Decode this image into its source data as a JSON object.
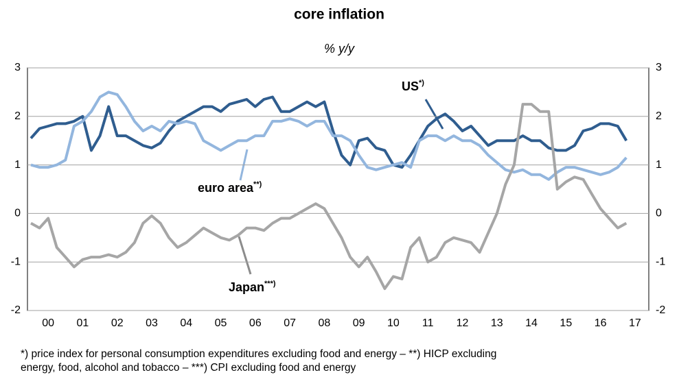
{
  "chart_data": {
    "type": "line",
    "title": "core inflation",
    "subtitle": "% y/y",
    "x": [
      0,
      0.25,
      0.5,
      0.75,
      1,
      1.25,
      1.5,
      1.75,
      2,
      2.25,
      2.5,
      2.75,
      3,
      3.25,
      3.5,
      3.75,
      4,
      4.25,
      4.5,
      4.75,
      5,
      5.25,
      5.5,
      5.75,
      6,
      6.25,
      6.5,
      6.75,
      7,
      7.25,
      7.5,
      7.75,
      8,
      8.25,
      8.5,
      8.75,
      9,
      9.25,
      9.5,
      9.75,
      10,
      10.25,
      10.5,
      10.75,
      11,
      11.25,
      11.5,
      11.75,
      12,
      12.25,
      12.5,
      12.75,
      13,
      13.25,
      13.5,
      13.75,
      14,
      14.25,
      14.5,
      14.75,
      15,
      15.25,
      15.5,
      15.75,
      16,
      16.25,
      16.5,
      16.75,
      17,
      17.25
    ],
    "series": [
      {
        "name": "US",
        "color": "#2f5d8f",
        "values": [
          1.55,
          1.75,
          1.8,
          1.85,
          1.85,
          1.9,
          2.0,
          1.3,
          1.6,
          2.2,
          1.6,
          1.6,
          1.5,
          1.4,
          1.35,
          1.45,
          1.7,
          1.9,
          2.0,
          2.1,
          2.2,
          2.2,
          2.1,
          2.25,
          2.3,
          2.35,
          2.2,
          2.35,
          2.4,
          2.1,
          2.1,
          2.2,
          2.3,
          2.2,
          2.3,
          1.7,
          1.2,
          1.0,
          1.5,
          1.55,
          1.35,
          1.3,
          1.0,
          0.95,
          1.2,
          1.5,
          1.8,
          1.95,
          2.05,
          1.9,
          1.7,
          1.8,
          1.6,
          1.4,
          1.5,
          1.5,
          1.5,
          1.6,
          1.5,
          1.5,
          1.35,
          1.3,
          1.3,
          1.4,
          1.7,
          1.75,
          1.85,
          1.85,
          1.8,
          1.5
        ]
      },
      {
        "name": "euro area",
        "color": "#93b6de",
        "values": [
          1.0,
          0.95,
          0.95,
          1.0,
          1.1,
          1.8,
          1.9,
          2.1,
          2.4,
          2.5,
          2.45,
          2.2,
          1.9,
          1.7,
          1.8,
          1.7,
          1.9,
          1.85,
          1.9,
          1.85,
          1.5,
          1.4,
          1.3,
          1.4,
          1.5,
          1.5,
          1.6,
          1.6,
          1.9,
          1.9,
          1.95,
          1.9,
          1.8,
          1.9,
          1.9,
          1.6,
          1.6,
          1.5,
          1.2,
          0.95,
          0.9,
          0.95,
          1.0,
          1.05,
          0.95,
          1.5,
          1.6,
          1.6,
          1.5,
          1.6,
          1.5,
          1.5,
          1.4,
          1.2,
          1.05,
          0.9,
          0.85,
          0.9,
          0.8,
          0.8,
          0.7,
          0.85,
          0.95,
          0.95,
          0.9,
          0.85,
          0.8,
          0.85,
          0.95,
          1.15
        ]
      },
      {
        "name": "Japan",
        "color": "#a6a6a6",
        "values": [
          -0.2,
          -0.3,
          -0.1,
          -0.7,
          -0.9,
          -1.1,
          -0.95,
          -0.9,
          -0.9,
          -0.85,
          -0.9,
          -0.8,
          -0.6,
          -0.2,
          -0.05,
          -0.2,
          -0.5,
          -0.7,
          -0.6,
          -0.45,
          -0.3,
          -0.4,
          -0.5,
          -0.55,
          -0.45,
          -0.3,
          -0.3,
          -0.35,
          -0.2,
          -0.1,
          -0.1,
          0.0,
          0.1,
          0.2,
          0.1,
          -0.2,
          -0.5,
          -0.9,
          -1.1,
          -0.9,
          -1.2,
          -1.55,
          -1.3,
          -1.35,
          -0.7,
          -0.5,
          -1.0,
          -0.9,
          -0.6,
          -0.5,
          -0.55,
          -0.6,
          -0.8,
          -0.4,
          0.0,
          0.6,
          1.0,
          2.25,
          2.25,
          2.1,
          2.1,
          0.5,
          0.65,
          0.75,
          0.7,
          0.4,
          0.1,
          -0.1,
          -0.3,
          -0.2
        ]
      }
    ],
    "annotations": [
      {
        "text": "US",
        "note": "*)"
      },
      {
        "text": "euro area",
        "note": "**)"
      },
      {
        "text": "Japan",
        "note": "***)"
      }
    ],
    "xlim": [
      -0.1,
      17.9
    ],
    "xticks": [
      {
        "value": 0.5,
        "label": "00"
      },
      {
        "value": 1.5,
        "label": "01"
      },
      {
        "value": 2.5,
        "label": "02"
      },
      {
        "value": 3.5,
        "label": "03"
      },
      {
        "value": 4.5,
        "label": "04"
      },
      {
        "value": 5.5,
        "label": "05"
      },
      {
        "value": 6.5,
        "label": "06"
      },
      {
        "value": 7.5,
        "label": "07"
      },
      {
        "value": 8.5,
        "label": "08"
      },
      {
        "value": 9.5,
        "label": "09"
      },
      {
        "value": 10.5,
        "label": "10"
      },
      {
        "value": 11.5,
        "label": "11"
      },
      {
        "value": 12.5,
        "label": "12"
      },
      {
        "value": 13.5,
        "label": "13"
      },
      {
        "value": 14.5,
        "label": "14"
      },
      {
        "value": 15.5,
        "label": "15"
      },
      {
        "value": 16.5,
        "label": "16"
      },
      {
        "value": 17.5,
        "label": "17"
      }
    ],
    "ylim": [
      -2,
      3
    ],
    "yticks": [
      -2,
      -1,
      0,
      1,
      2,
      3
    ],
    "grid": true,
    "footnote": [
      "*) price index for personal consumption expenditures excluding food and energy  –  **)  HICP  excluding",
      "energy, food, alcohol and tobacco  –  ***)  CPI excluding  food  and energy"
    ]
  }
}
